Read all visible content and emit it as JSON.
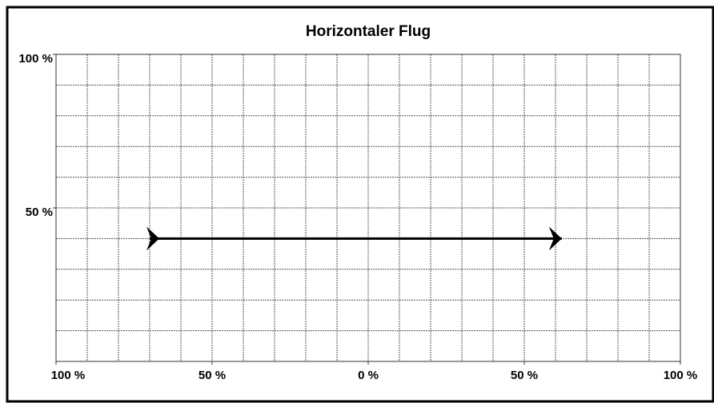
{
  "chart_data": {
    "type": "line",
    "title": "Horizontaler Flug",
    "x": [
      -70,
      62
    ],
    "series": [
      {
        "color": "#000000",
        "values": [
          40,
          40
        ]
      }
    ],
    "xlim": [
      -100,
      100
    ],
    "xticks": [
      {
        "value": -100,
        "label": "100 %"
      },
      {
        "value": -50,
        "label": "50 %"
      },
      {
        "value": 0,
        "label": "0 %"
      },
      {
        "value": 50,
        "label": "50 %"
      },
      {
        "value": 100,
        "label": "100 %"
      }
    ],
    "ylim": [
      0,
      100
    ],
    "yticks": [
      {
        "value": 100,
        "label": "100 %"
      },
      {
        "value": 50,
        "label": "50 %"
      }
    ],
    "xgrid": [
      -100,
      -90,
      -80,
      -70,
      -60,
      -50,
      -40,
      -30,
      -20,
      -10,
      0,
      10,
      20,
      30,
      40,
      50,
      60,
      70,
      80,
      90,
      100
    ],
    "ygrid": [
      0,
      10,
      20,
      30,
      40,
      50,
      60,
      70,
      80,
      90,
      100
    ],
    "grid": true
  }
}
